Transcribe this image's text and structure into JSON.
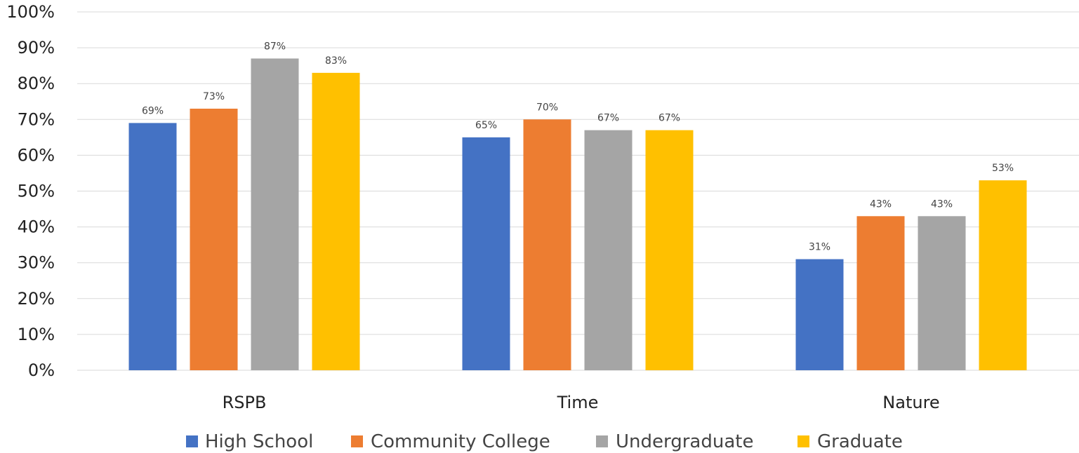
{
  "chart_data": {
    "type": "bar",
    "categories": [
      "RSPB",
      "Time",
      "Nature"
    ],
    "series": [
      {
        "name": "High School",
        "values": [
          69,
          65,
          31
        ],
        "color": "#4472C4"
      },
      {
        "name": "Community College",
        "values": [
          73,
          70,
          43
        ],
        "color": "#ED7D31"
      },
      {
        "name": "Undergraduate",
        "values": [
          87,
          67,
          43
        ],
        "color": "#A5A5A5"
      },
      {
        "name": "Graduate",
        "values": [
          83,
          67,
          53
        ],
        "color": "#FFC000"
      }
    ],
    "data_labels": [
      [
        "69%",
        "65%",
        "31%"
      ],
      [
        "73%",
        "70%",
        "43%"
      ],
      [
        "87%",
        "67%",
        "43%"
      ],
      [
        "83%",
        "67%",
        "53%"
      ]
    ],
    "y_ticks": [
      "0%",
      "10%",
      "20%",
      "30%",
      "40%",
      "50%",
      "60%",
      "70%",
      "80%",
      "90%",
      "100%"
    ],
    "ylim": [
      0,
      100
    ],
    "grid": true,
    "legend_position": "bottom",
    "title": "",
    "xlabel": "",
    "ylabel": ""
  }
}
